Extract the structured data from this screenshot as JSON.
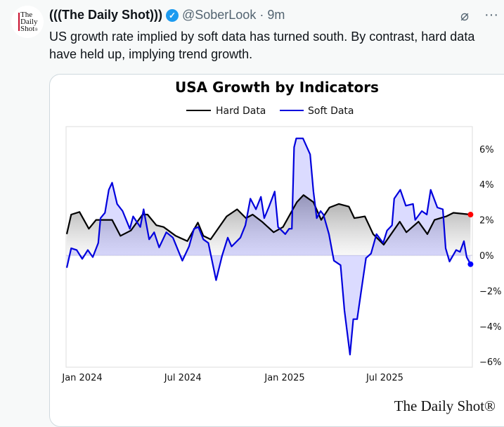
{
  "tweet": {
    "avatar_logo": "The Daily Shot",
    "display_name": "(((The Daily Shot)))",
    "verified_icon": "verified-check-icon",
    "handle": "@SoberLook",
    "separator": "·",
    "time": "9m",
    "grok_icon": "grok-icon",
    "more_icon": "more-dots-icon",
    "more_label": "···",
    "text": "US growth rate implied by soft data has turned south. By contrast, hard data have held up, implying trend growth."
  },
  "chart_data": {
    "type": "line",
    "title": "USA Growth by Indicators",
    "watermark": "The Daily Shot®",
    "xlabel": "",
    "ylabel": "",
    "x_ticks": [
      {
        "date": "2024-01-01",
        "label": "Jan 2024"
      },
      {
        "date": "2024-07-01",
        "label": "Jul 2024"
      },
      {
        "date": "2025-01-01",
        "label": "Jan 2025"
      },
      {
        "date": "2025-07-01",
        "label": "Jul 2025"
      }
    ],
    "y_ticks": [
      6,
      4,
      2,
      0,
      -2,
      -4,
      -6
    ],
    "y_tick_labels": [
      "6%",
      "4%",
      "2%",
      "0%",
      "−2%",
      "−4%",
      "−6%"
    ],
    "ylim": [
      -6.4,
      7.3
    ],
    "xlim": [
      "2023-12-01",
      "2025-12-05"
    ],
    "y_axis_side": "right",
    "grid": false,
    "legend_position": "top",
    "series": [
      {
        "name": "Hard Data",
        "color": "#000000",
        "end_marker_color": "#ff0000",
        "fill": "gray gradient to zero",
        "points": [
          [
            "2023-12-04",
            1.2
          ],
          [
            "2023-12-12",
            2.3
          ],
          [
            "2023-12-27",
            2.45
          ],
          [
            "2024-01-13",
            1.5
          ],
          [
            "2024-01-26",
            2.0
          ],
          [
            "2024-02-11",
            2.0
          ],
          [
            "2024-02-24",
            2.0
          ],
          [
            "2024-03-10",
            1.1
          ],
          [
            "2024-03-29",
            1.4
          ],
          [
            "2024-04-19",
            2.3
          ],
          [
            "2024-04-28",
            2.3
          ],
          [
            "2024-05-14",
            1.7
          ],
          [
            "2024-05-27",
            1.6
          ],
          [
            "2024-06-18",
            1.1
          ],
          [
            "2024-07-09",
            0.8
          ],
          [
            "2024-07-28",
            1.85
          ],
          [
            "2024-08-07",
            1.1
          ],
          [
            "2024-08-20",
            0.9
          ],
          [
            "2024-09-18",
            2.2
          ],
          [
            "2024-10-07",
            2.6
          ],
          [
            "2024-10-23",
            2.1
          ],
          [
            "2024-11-04",
            2.3
          ],
          [
            "2024-11-21",
            1.9
          ],
          [
            "2024-12-12",
            1.3
          ],
          [
            "2024-12-29",
            1.6
          ],
          [
            "2025-01-23",
            3.0
          ],
          [
            "2025-02-04",
            3.4
          ],
          [
            "2025-02-22",
            3.0
          ],
          [
            "2025-03-08",
            2.0
          ],
          [
            "2025-03-23",
            2.7
          ],
          [
            "2025-04-09",
            2.9
          ],
          [
            "2025-04-27",
            2.75
          ],
          [
            "2025-05-07",
            2.1
          ],
          [
            "2025-05-26",
            2.2
          ],
          [
            "2025-06-10",
            1.2
          ],
          [
            "2025-06-29",
            0.6
          ],
          [
            "2025-07-28",
            1.9
          ],
          [
            "2025-08-09",
            1.3
          ],
          [
            "2025-08-31",
            1.9
          ],
          [
            "2025-09-16",
            1.2
          ],
          [
            "2025-09-29",
            2.0
          ],
          [
            "2025-10-20",
            2.2
          ],
          [
            "2025-11-02",
            2.4
          ],
          [
            "2025-12-03",
            2.3
          ]
        ]
      },
      {
        "name": "Soft Data",
        "color": "#0000dd",
        "end_marker_color": "#0000ff",
        "fill": "translucent blue to zero",
        "points": [
          [
            "2023-12-04",
            -0.7
          ],
          [
            "2023-12-12",
            0.4
          ],
          [
            "2023-12-22",
            0.3
          ],
          [
            "2024-01-01",
            -0.2
          ],
          [
            "2024-01-11",
            0.3
          ],
          [
            "2024-01-20",
            -0.1
          ],
          [
            "2024-01-30",
            0.7
          ],
          [
            "2024-02-03",
            2.1
          ],
          [
            "2024-02-11",
            2.4
          ],
          [
            "2024-02-18",
            3.7
          ],
          [
            "2024-02-24",
            4.1
          ],
          [
            "2024-03-04",
            2.9
          ],
          [
            "2024-03-14",
            2.5
          ],
          [
            "2024-03-27",
            1.5
          ],
          [
            "2024-04-02",
            2.2
          ],
          [
            "2024-04-15",
            1.6
          ],
          [
            "2024-04-21",
            2.6
          ],
          [
            "2024-05-01",
            0.9
          ],
          [
            "2024-05-10",
            1.3
          ],
          [
            "2024-05-19",
            0.45
          ],
          [
            "2024-06-01",
            1.3
          ],
          [
            "2024-06-13",
            1.0
          ],
          [
            "2024-06-30",
            -0.3
          ],
          [
            "2024-07-12",
            0.5
          ],
          [
            "2024-07-21",
            1.5
          ],
          [
            "2024-07-29",
            1.6
          ],
          [
            "2024-08-07",
            0.9
          ],
          [
            "2024-08-16",
            0.7
          ],
          [
            "2024-08-30",
            -1.4
          ],
          [
            "2024-09-10",
            0.0
          ],
          [
            "2024-09-20",
            1.0
          ],
          [
            "2024-09-27",
            0.5
          ],
          [
            "2024-10-13",
            1.0
          ],
          [
            "2024-10-22",
            1.7
          ],
          [
            "2024-10-31",
            3.2
          ],
          [
            "2024-11-10",
            2.6
          ],
          [
            "2024-11-19",
            3.3
          ],
          [
            "2024-11-25",
            2.1
          ],
          [
            "2024-12-03",
            2.7
          ],
          [
            "2024-12-14",
            3.6
          ],
          [
            "2024-12-20",
            1.6
          ],
          [
            "2025-01-02",
            1.2
          ],
          [
            "2025-01-09",
            1.5
          ],
          [
            "2025-01-14",
            1.5
          ],
          [
            "2025-01-18",
            6.1
          ],
          [
            "2025-01-22",
            6.6
          ],
          [
            "2025-02-03",
            6.6
          ],
          [
            "2025-02-16",
            5.7
          ],
          [
            "2025-02-22",
            3.6
          ],
          [
            "2025-02-28",
            2.1
          ],
          [
            "2025-03-07",
            2.5
          ],
          [
            "2025-03-12",
            2.3
          ],
          [
            "2025-03-22",
            1.2
          ],
          [
            "2025-03-31",
            -0.3
          ],
          [
            "2025-04-12",
            -0.55
          ],
          [
            "2025-04-19",
            -3.1
          ],
          [
            "2025-04-29",
            -5.6
          ],
          [
            "2025-05-05",
            -3.6
          ],
          [
            "2025-05-12",
            -3.6
          ],
          [
            "2025-05-18",
            -2.3
          ],
          [
            "2025-05-28",
            -0.15
          ],
          [
            "2025-06-06",
            0.1
          ],
          [
            "2025-06-16",
            1.2
          ],
          [
            "2025-06-28",
            0.7
          ],
          [
            "2025-07-05",
            1.4
          ],
          [
            "2025-07-14",
            1.7
          ],
          [
            "2025-07-18",
            3.2
          ],
          [
            "2025-07-29",
            3.7
          ],
          [
            "2025-08-08",
            2.8
          ],
          [
            "2025-08-21",
            2.9
          ],
          [
            "2025-08-25",
            2.0
          ],
          [
            "2025-09-06",
            2.5
          ],
          [
            "2025-09-15",
            2.3
          ],
          [
            "2025-09-22",
            3.7
          ],
          [
            "2025-10-04",
            2.7
          ],
          [
            "2025-10-14",
            2.6
          ],
          [
            "2025-10-19",
            0.4
          ],
          [
            "2025-10-26",
            -0.35
          ],
          [
            "2025-11-07",
            0.3
          ],
          [
            "2025-11-14",
            0.2
          ],
          [
            "2025-11-21",
            0.8
          ],
          [
            "2025-11-26",
            -0.1
          ],
          [
            "2025-12-03",
            -0.5
          ]
        ]
      }
    ]
  }
}
